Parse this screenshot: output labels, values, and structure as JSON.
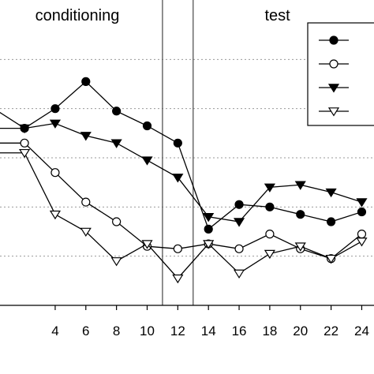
{
  "chart_data": {
    "type": "line",
    "phase_labels": [
      "conditioning",
      "test"
    ],
    "phase_boundaries": [
      11,
      13
    ],
    "x_ticks": [
      4,
      6,
      8,
      10,
      12,
      14,
      16,
      18,
      20,
      22,
      24
    ],
    "xlim": [
      0.4,
      24.8
    ],
    "ylim": [
      0,
      6
    ],
    "grid_y": [
      1,
      2,
      3,
      4,
      5
    ],
    "grid": "dashed horizontal",
    "legend_position": "top-right (partially cropped)",
    "series": [
      {
        "marker": "filled-circle",
        "color": "#000000",
        "x": [
          0,
          2,
          4,
          6,
          8,
          10,
          12,
          14,
          16,
          18,
          20,
          22,
          24
        ],
        "y": [
          4.0,
          3.6,
          4.0,
          4.55,
          3.95,
          3.65,
          3.3,
          1.55,
          2.05,
          2.0,
          1.85,
          1.7,
          1.9
        ]
      },
      {
        "marker": "open-circle",
        "color": "#000000",
        "x": [
          0,
          2,
          4,
          6,
          8,
          10,
          12,
          14,
          16,
          18,
          20,
          22,
          24
        ],
        "y": [
          3.3,
          3.3,
          2.7,
          2.1,
          1.7,
          1.2,
          1.15,
          1.25,
          1.15,
          1.45,
          1.15,
          0.95,
          1.45
        ]
      },
      {
        "marker": "filled-triangle-down",
        "color": "#000000",
        "x": [
          0,
          2,
          4,
          6,
          8,
          10,
          12,
          14,
          16,
          18,
          20,
          22,
          24
        ],
        "y": [
          3.6,
          3.6,
          3.7,
          3.45,
          3.3,
          2.95,
          2.6,
          1.8,
          1.7,
          2.4,
          2.45,
          2.3,
          2.1
        ]
      },
      {
        "marker": "open-triangle-down",
        "color": "#000000",
        "x": [
          0,
          2,
          4,
          6,
          8,
          10,
          12,
          14,
          16,
          18,
          20,
          22,
          24
        ],
        "y": [
          3.1,
          3.1,
          1.85,
          1.5,
          0.9,
          1.25,
          0.55,
          1.25,
          0.65,
          1.05,
          1.2,
          0.95,
          1.3
        ]
      }
    ]
  }
}
